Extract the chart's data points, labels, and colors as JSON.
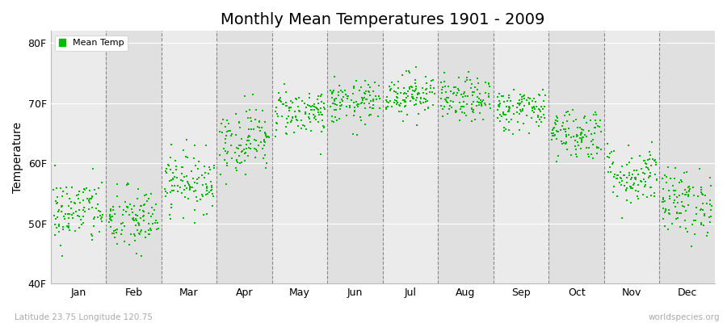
{
  "title": "Monthly Mean Temperatures 1901 - 2009",
  "ylabel": "Temperature",
  "xlabel_labels": [
    "Jan",
    "Feb",
    "Mar",
    "Apr",
    "May",
    "Jun",
    "Jul",
    "Aug",
    "Sep",
    "Oct",
    "Nov",
    "Dec"
  ],
  "ytick_labels": [
    "40F",
    "50F",
    "60F",
    "70F",
    "80F"
  ],
  "ytick_values": [
    40,
    50,
    60,
    70,
    80
  ],
  "ylim": [
    40,
    82
  ],
  "dot_color": "#00bb00",
  "dot_size": 3,
  "bg_color_light": "#ebebeb",
  "bg_color_dark": "#e0e0e0",
  "subtitle_left": "Latitude 23.75 Longitude 120.75",
  "subtitle_right": "worldspecies.org",
  "legend_label": "Mean Temp",
  "title_fontsize": 14,
  "num_years": 109,
  "monthly_means_F": [
    52.0,
    50.5,
    57.0,
    64.0,
    68.5,
    70.0,
    71.5,
    70.5,
    69.0,
    65.0,
    58.0,
    53.5
  ],
  "monthly_std_F": [
    2.8,
    2.8,
    2.5,
    2.8,
    2.0,
    1.8,
    1.8,
    1.8,
    1.8,
    2.2,
    2.5,
    2.8
  ]
}
